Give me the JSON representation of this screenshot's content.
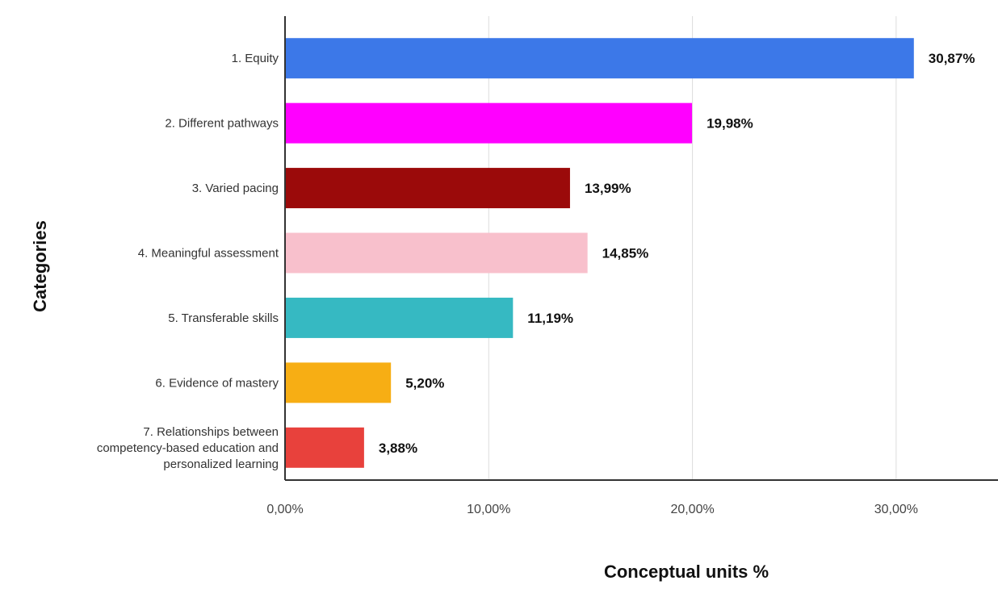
{
  "chart_data": {
    "type": "bar",
    "orientation": "horizontal",
    "xlabel": "Conceptual units %",
    "ylabel": "Categories",
    "xlim": [
      0,
      35
    ],
    "xticks": [
      0,
      10,
      20,
      30
    ],
    "xtick_labels": [
      "0,00%",
      "10,00%",
      "20,00%",
      "30,00%"
    ],
    "grid": true,
    "categories": [
      [
        "1. Equity"
      ],
      [
        "2. Different pathways"
      ],
      [
        "3. Varied pacing"
      ],
      [
        "4. Meaningful assessment"
      ],
      [
        "5. Transferable skills"
      ],
      [
        "6. Evidence of mastery"
      ],
      [
        "7. Relationships between",
        "competency-based education and",
        "personalized learning"
      ]
    ],
    "values": [
      30.87,
      19.98,
      13.99,
      14.85,
      11.19,
      5.2,
      3.88
    ],
    "value_labels": [
      "30,87%",
      "19,98%",
      "13,99%",
      "14,85%",
      "11,19%",
      "5,20%",
      "3,88%"
    ],
    "colors": [
      "#3c78e8",
      "#ff00ff",
      "#9b0a0a",
      "#f8c0cc",
      "#36b9c2",
      "#f7ae14",
      "#e8413c"
    ]
  }
}
